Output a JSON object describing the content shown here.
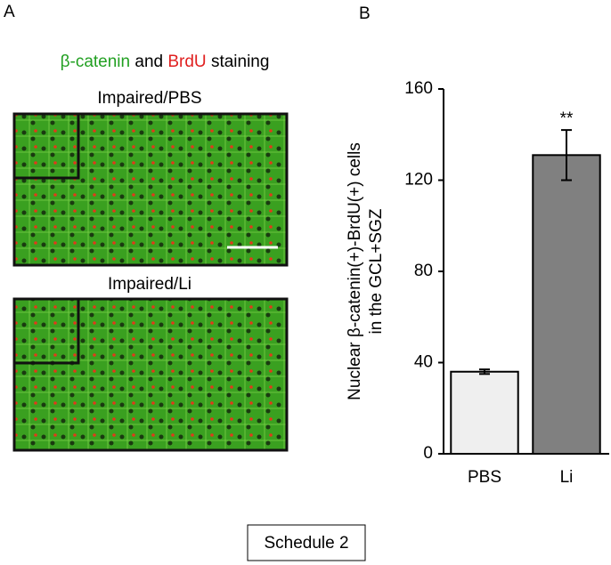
{
  "panel_a": {
    "label": "A",
    "heading": [
      {
        "text": "β-catenin",
        "color": "#22a022"
      },
      {
        "text": "and",
        "color": "#000000"
      },
      {
        "text": "BrdU",
        "color": "#e02020"
      },
      {
        "text": "staining",
        "color": "#000000"
      }
    ],
    "images": [
      {
        "caption": "Impaired/PBS"
      },
      {
        "caption": "Impaired/Li"
      }
    ]
  },
  "panel_b": {
    "label": "B"
  },
  "chart_data": {
    "type": "bar",
    "ylabel": [
      "Nuclear β-catenin(+)-BrdU(+) cells",
      "in the GCL+SGZ"
    ],
    "categories": [
      "PBS",
      "Li"
    ],
    "values": [
      36,
      131
    ],
    "errors": [
      1,
      11
    ],
    "colors": [
      "#efefef",
      "#808080"
    ],
    "ylim": [
      0,
      160
    ],
    "yticks": [
      0,
      40,
      80,
      120,
      160
    ],
    "annotations": [
      {
        "text": "**",
        "category": "Li"
      }
    ]
  },
  "footer": "Schedule 2"
}
